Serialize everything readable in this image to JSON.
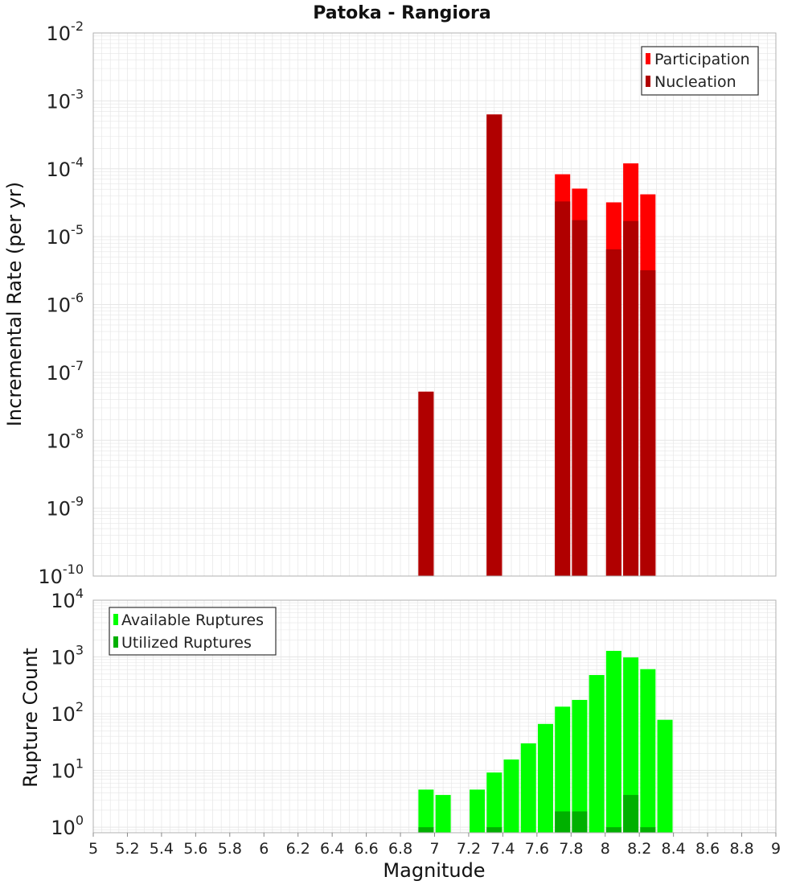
{
  "title": "Patoka - Rangiora",
  "colors": {
    "participation": "#ff0000",
    "nucleation": "#b00000",
    "available": "#00ff00",
    "utilized": "#00b000",
    "grid": "#e6e6e6",
    "frame": "#b0b0b0"
  },
  "chart_data": [
    {
      "type": "bar",
      "title": "Patoka - Rangiora",
      "xlabel": "Magnitude",
      "ylabel": "Incremental Rate (per yr)",
      "xlim": [
        5,
        9
      ],
      "ylim": [
        1e-10,
        0.01
      ],
      "yscale": "log",
      "grid": true,
      "legend": "top-right",
      "x": [
        6.95,
        7.35,
        7.75,
        7.85,
        8.05,
        8.15,
        8.25
      ],
      "series": [
        {
          "name": "Participation",
          "values": [
            5.2e-08,
            0.00063,
            8.3e-05,
            5.1e-05,
            3.2e-05,
            0.00012,
            4.2e-05
          ]
        },
        {
          "name": "Nucleation",
          "values": [
            5.2e-08,
            0.00063,
            3.3e-05,
            1.75e-05,
            6.5e-06,
            1.7e-05,
            3.2e-06
          ]
        }
      ]
    },
    {
      "type": "bar",
      "xlabel": "Magnitude",
      "ylabel": "Rupture Count",
      "xlim": [
        5,
        9
      ],
      "ylim": [
        0.8,
        10000
      ],
      "yscale": "log",
      "grid": true,
      "legend": "top-left",
      "x": [
        6.95,
        7.05,
        7.25,
        7.35,
        7.45,
        7.55,
        7.65,
        7.75,
        7.85,
        7.95,
        8.05,
        8.15,
        8.25,
        8.35
      ],
      "series": [
        {
          "name": "Available Ruptures",
          "values": [
            4.6,
            3.7,
            4.6,
            9.2,
            15.6,
            30,
            66,
            133,
            175,
            480,
            1280,
            980,
            610,
            78
          ]
        },
        {
          "name": "Utilized Ruptures",
          "values": [
            1,
            null,
            null,
            1,
            null,
            null,
            null,
            1.9,
            1.9,
            null,
            1,
            3.7,
            1,
            null
          ]
        }
      ]
    }
  ],
  "xticks": [
    "5",
    "5.2",
    "5.4",
    "5.6",
    "5.8",
    "6",
    "6.2",
    "6.4",
    "6.6",
    "6.8",
    "7",
    "7.2",
    "7.4",
    "7.6",
    "7.8",
    "8",
    "8.2",
    "8.4",
    "8.6",
    "8.8",
    "9"
  ],
  "top_yticks": [
    {
      "base": "10",
      "exp": "-10"
    },
    {
      "base": "10",
      "exp": "-9"
    },
    {
      "base": "10",
      "exp": "-8"
    },
    {
      "base": "10",
      "exp": "-7"
    },
    {
      "base": "10",
      "exp": "-6"
    },
    {
      "base": "10",
      "exp": "-5"
    },
    {
      "base": "10",
      "exp": "-4"
    },
    {
      "base": "10",
      "exp": "-3"
    },
    {
      "base": "10",
      "exp": "-2"
    }
  ],
  "bottom_yticks": [
    {
      "base": "10",
      "exp": "0"
    },
    {
      "base": "10",
      "exp": "1"
    },
    {
      "base": "10",
      "exp": "2"
    },
    {
      "base": "10",
      "exp": "3"
    },
    {
      "base": "10",
      "exp": "4"
    }
  ]
}
